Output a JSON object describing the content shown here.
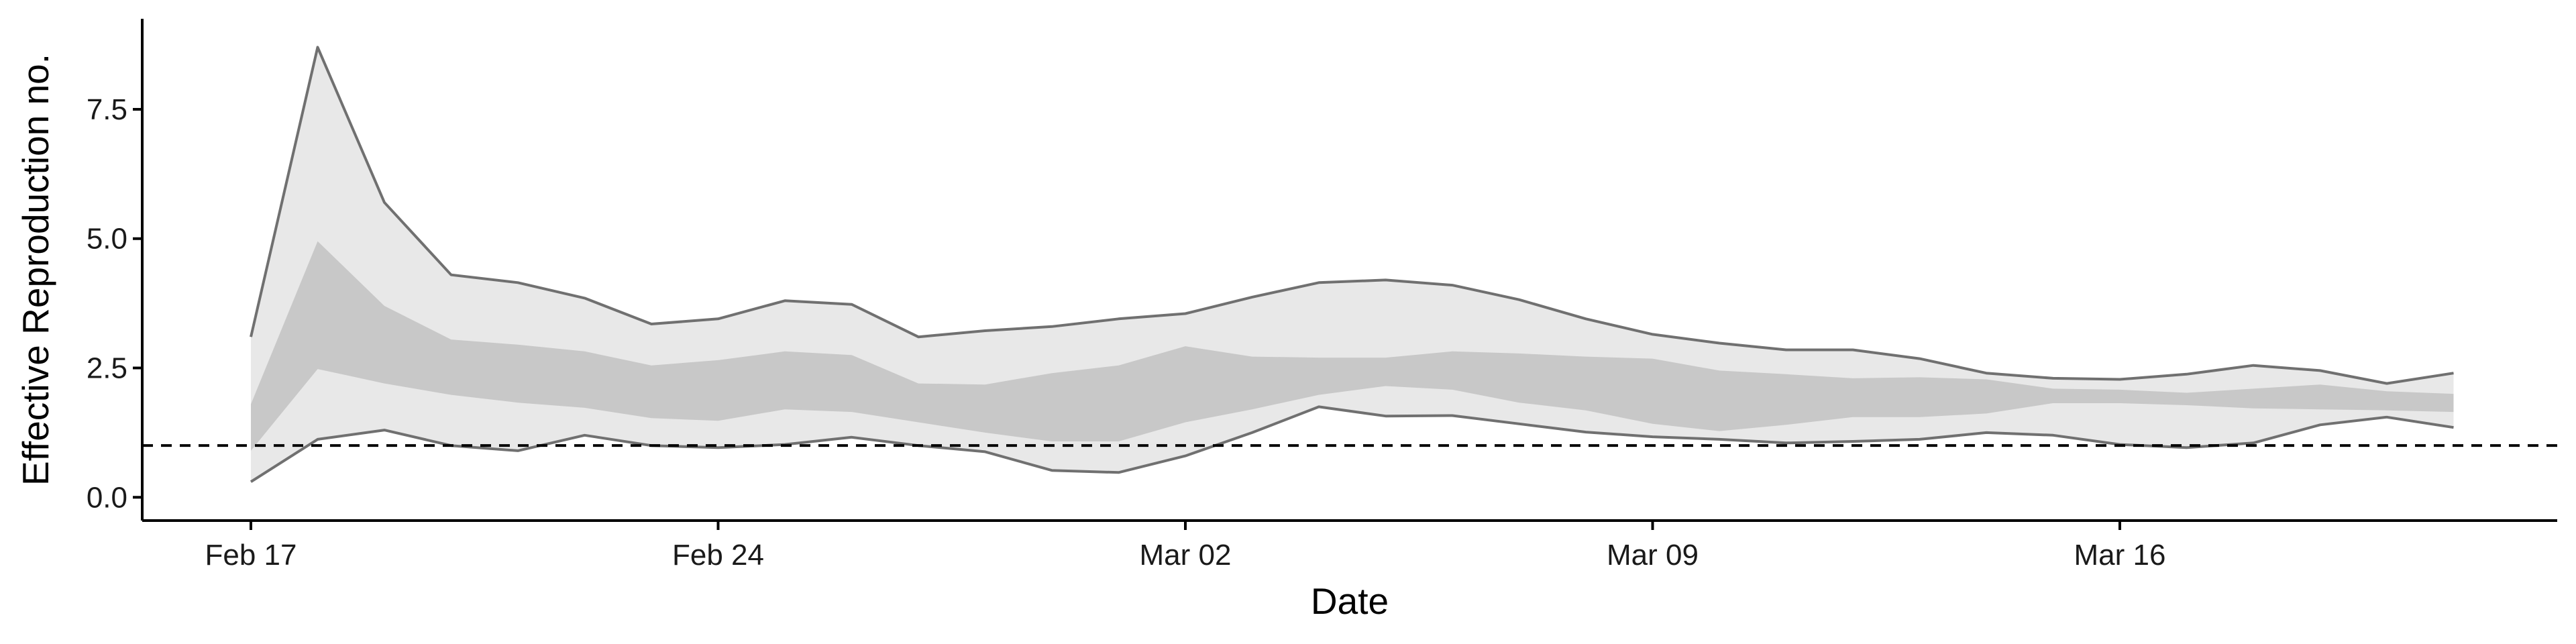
{
  "chart_data": {
    "type": "area",
    "title": "",
    "xlabel": "Date",
    "ylabel": "Effective Reproduction no.",
    "x": [
      "Feb 17",
      "Feb 18",
      "Feb 19",
      "Feb 20",
      "Feb 21",
      "Feb 22",
      "Feb 23",
      "Feb 24",
      "Feb 25",
      "Feb 26",
      "Feb 27",
      "Feb 28",
      "Feb 29",
      "Mar 01",
      "Mar 02",
      "Mar 03",
      "Mar 04",
      "Mar 05",
      "Mar 06",
      "Mar 07",
      "Mar 08",
      "Mar 09",
      "Mar 10",
      "Mar 11",
      "Mar 12",
      "Mar 13",
      "Mar 14",
      "Mar 15",
      "Mar 16",
      "Mar 17",
      "Mar 18",
      "Mar 19",
      "Mar 20",
      "Mar 21"
    ],
    "x_ticks": [
      {
        "label": "Feb 17",
        "index": 0
      },
      {
        "label": "Feb 24",
        "index": 7
      },
      {
        "label": "Mar 02",
        "index": 14
      },
      {
        "label": "Mar 09",
        "index": 21
      },
      {
        "label": "Mar 16",
        "index": 28
      }
    ],
    "y_ticks": [
      {
        "label": "0.0",
        "value": 0.0
      },
      {
        "label": "2.5",
        "value": 2.5
      },
      {
        "label": "5.0",
        "value": 5.0
      },
      {
        "label": "7.5",
        "value": 7.5
      }
    ],
    "ylim": [
      -0.45,
      9.25
    ],
    "reference_line": {
      "y": 1.0,
      "style": "dashed",
      "color": "#000000"
    },
    "series": [
      {
        "role": "outer_band",
        "color": "#e8e8e8",
        "upper": [
          3.1,
          8.7,
          5.7,
          4.3,
          4.15,
          3.85,
          3.35,
          3.45,
          3.8,
          3.73,
          3.1,
          3.22,
          3.3,
          3.45,
          3.55,
          3.87,
          4.15,
          4.2,
          4.1,
          3.82,
          3.45,
          3.15,
          2.98,
          2.85,
          2.85,
          2.68,
          2.4,
          2.3,
          2.28,
          2.38,
          2.55,
          2.45,
          2.2,
          2.4
        ],
        "lower": [
          0.3,
          1.12,
          1.3,
          1.0,
          0.9,
          1.2,
          1.0,
          0.96,
          1.02,
          1.16,
          1.0,
          0.88,
          0.52,
          0.48,
          0.8,
          1.25,
          1.75,
          1.57,
          1.58,
          1.42,
          1.26,
          1.17,
          1.12,
          1.05,
          1.08,
          1.12,
          1.25,
          1.2,
          1.02,
          0.96,
          1.05,
          1.4,
          1.55,
          1.35
        ]
      },
      {
        "role": "inner_band",
        "color": "#c8c8c8",
        "upper": [
          1.8,
          4.95,
          3.7,
          3.05,
          2.95,
          2.82,
          2.55,
          2.65,
          2.82,
          2.75,
          2.2,
          2.18,
          2.4,
          2.55,
          2.92,
          2.72,
          2.7,
          2.7,
          2.82,
          2.78,
          2.72,
          2.68,
          2.45,
          2.38,
          2.3,
          2.32,
          2.28,
          2.1,
          2.08,
          2.02,
          2.1,
          2.18,
          2.05,
          2.0
        ],
        "lower": [
          0.9,
          2.48,
          2.2,
          1.98,
          1.83,
          1.73,
          1.53,
          1.48,
          1.7,
          1.65,
          1.45,
          1.25,
          1.08,
          1.08,
          1.45,
          1.7,
          1.98,
          2.15,
          2.08,
          1.83,
          1.68,
          1.42,
          1.28,
          1.4,
          1.55,
          1.55,
          1.62,
          1.82,
          1.82,
          1.78,
          1.72,
          1.7,
          1.68,
          1.65
        ]
      }
    ],
    "colors": {
      "outline": "#707070",
      "axis": "#000000"
    },
    "grid": false,
    "legend": "none"
  }
}
